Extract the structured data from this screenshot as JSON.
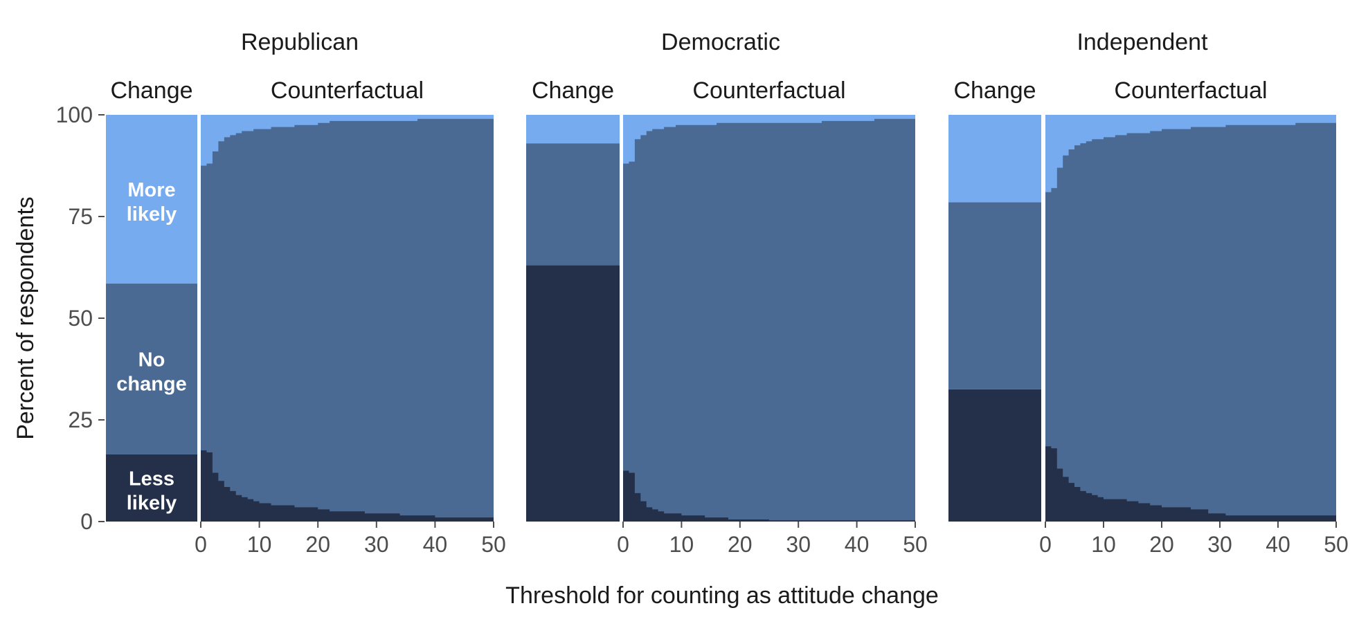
{
  "chart_data": {
    "type": "area",
    "ylabel": "Percent of respondents",
    "xlabel": "Threshold for counting as attitude change",
    "y_ticks": [
      0,
      25,
      50,
      75,
      100
    ],
    "x_ticks": [
      0,
      10,
      20,
      30,
      40,
      50
    ],
    "ylim": [
      0,
      100
    ],
    "xlim": [
      0,
      50
    ],
    "grid": false,
    "strip_labels": {
      "change": "Change",
      "counterfactual": "Counterfactual"
    },
    "category_labels": {
      "more": [
        "More",
        "likely"
      ],
      "none": [
        "No",
        "change"
      ],
      "less": [
        "Less",
        "likely"
      ]
    },
    "colors": {
      "more": "#77abf0",
      "none": "#4a6a94",
      "less": "#243049",
      "separator": "#ffffff"
    },
    "panels": [
      {
        "party": "Republican",
        "change": {
          "less": 16.5,
          "more": 41.5
        },
        "counterfactual": {
          "thresholds": [
            0,
            1,
            2,
            3,
            4,
            5,
            6,
            7,
            8,
            9,
            10,
            12,
            14,
            16,
            18,
            20,
            22,
            25,
            28,
            31,
            34,
            37,
            40,
            43,
            46,
            50
          ],
          "less": [
            17.5,
            17.0,
            12.0,
            10.0,
            8.5,
            7.5,
            6.5,
            6.0,
            5.5,
            5.0,
            4.5,
            4.0,
            4.0,
            3.5,
            3.5,
            3.0,
            2.5,
            2.5,
            2.0,
            2.0,
            1.5,
            1.5,
            1.0,
            1.0,
            1.0,
            0.5
          ],
          "more": [
            12.5,
            12.0,
            9.0,
            6.5,
            5.5,
            5.0,
            4.5,
            4.0,
            4.0,
            3.5,
            3.5,
            3.0,
            3.0,
            2.5,
            2.5,
            2.0,
            1.5,
            1.5,
            1.5,
            1.5,
            1.5,
            1.0,
            1.0,
            1.0,
            1.0,
            1.0
          ]
        }
      },
      {
        "party": "Democratic",
        "change": {
          "less": 63.0,
          "more": 7.0
        },
        "counterfactual": {
          "thresholds": [
            0,
            1,
            2,
            3,
            4,
            5,
            6,
            7,
            8,
            9,
            10,
            12,
            14,
            16,
            18,
            20,
            22,
            25,
            28,
            31,
            34,
            37,
            40,
            43,
            46,
            50
          ],
          "less": [
            12.5,
            12.0,
            7.0,
            5.0,
            3.5,
            3.0,
            2.5,
            2.0,
            2.0,
            2.0,
            1.5,
            1.5,
            1.0,
            1.0,
            0.5,
            0.5,
            0.5,
            0.3,
            0.3,
            0.3,
            0.3,
            0.3,
            0.3,
            0.3,
            0.3,
            0.3
          ],
          "more": [
            12.0,
            11.5,
            6.0,
            5.0,
            4.0,
            3.5,
            3.5,
            3.0,
            3.0,
            2.5,
            2.5,
            2.5,
            2.5,
            2.0,
            2.0,
            2.0,
            2.0,
            2.0,
            2.0,
            2.0,
            1.5,
            1.5,
            1.5,
            1.0,
            1.0,
            1.0
          ]
        }
      },
      {
        "party": "Independent",
        "change": {
          "less": 32.5,
          "more": 21.5
        },
        "counterfactual": {
          "thresholds": [
            0,
            1,
            2,
            3,
            4,
            5,
            6,
            7,
            8,
            9,
            10,
            12,
            14,
            16,
            18,
            20,
            22,
            25,
            28,
            31,
            34,
            37,
            40,
            43,
            46,
            50
          ],
          "less": [
            18.5,
            18.0,
            13.0,
            11.0,
            9.5,
            8.5,
            7.5,
            7.0,
            6.5,
            6.0,
            5.5,
            5.5,
            5.0,
            4.5,
            4.0,
            3.5,
            3.5,
            3.0,
            2.0,
            1.5,
            1.5,
            1.5,
            1.5,
            1.5,
            1.5,
            1.5
          ],
          "more": [
            19.0,
            18.0,
            13.0,
            10.0,
            8.5,
            7.5,
            7.0,
            6.5,
            6.0,
            6.0,
            5.5,
            5.0,
            4.5,
            4.5,
            4.0,
            3.5,
            3.5,
            3.0,
            3.0,
            2.5,
            2.5,
            2.5,
            2.5,
            2.0,
            2.0,
            2.0
          ]
        }
      }
    ]
  }
}
